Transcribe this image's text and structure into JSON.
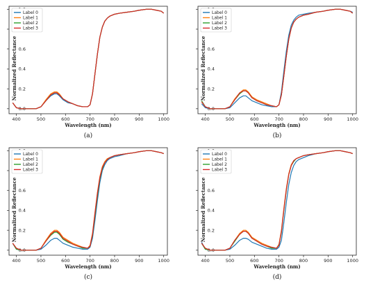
{
  "chart_data": [
    {
      "type": "line",
      "caption": "(a)",
      "xlabel": "Wavelength   (nm)",
      "ylabel": "Normalized Reflectance",
      "xlim": [
        370,
        1015
      ],
      "ylim": [
        -0.05,
        1.03
      ],
      "xticks": [
        400,
        500,
        600,
        700,
        800,
        900,
        1000
      ],
      "yticks": [
        0.0,
        0.2,
        0.4,
        0.6,
        0.8,
        1.0
      ],
      "ytick_labels": [
        "0.0",
        "0.2",
        "0.4",
        "0.6",
        "0.8",
        "1.0"
      ],
      "legend_position": "top-left",
      "x": [
        385,
        400,
        420,
        450,
        480,
        500,
        520,
        540,
        555,
        565,
        575,
        590,
        610,
        630,
        650,
        670,
        690,
        700,
        710,
        720,
        730,
        740,
        750,
        760,
        770,
        780,
        800,
        820,
        850,
        880,
        900,
        930,
        950,
        970,
        990,
        1000
      ],
      "series": [
        {
          "name": "Label 0",
          "color": "#1f77b4",
          "values": [
            0.06,
            0.01,
            0.0,
            0.0,
            0.0,
            0.02,
            0.08,
            0.13,
            0.15,
            0.15,
            0.13,
            0.09,
            0.06,
            0.05,
            0.03,
            0.02,
            0.02,
            0.04,
            0.15,
            0.35,
            0.55,
            0.72,
            0.82,
            0.88,
            0.91,
            0.93,
            0.95,
            0.96,
            0.97,
            0.98,
            0.99,
            1.0,
            1.0,
            0.99,
            0.98,
            0.96
          ]
        },
        {
          "name": "Label 1",
          "color": "#ff7f0e",
          "values": [
            0.06,
            0.01,
            0.0,
            0.0,
            0.0,
            0.02,
            0.09,
            0.15,
            0.17,
            0.17,
            0.15,
            0.1,
            0.07,
            0.05,
            0.03,
            0.02,
            0.02,
            0.04,
            0.15,
            0.35,
            0.55,
            0.72,
            0.82,
            0.88,
            0.91,
            0.93,
            0.95,
            0.96,
            0.97,
            0.98,
            0.99,
            1.0,
            1.0,
            0.99,
            0.98,
            0.96
          ]
        },
        {
          "name": "Label 2",
          "color": "#2ca02c",
          "values": [
            0.06,
            0.01,
            0.0,
            0.0,
            0.0,
            0.02,
            0.08,
            0.14,
            0.16,
            0.16,
            0.14,
            0.1,
            0.07,
            0.05,
            0.03,
            0.02,
            0.02,
            0.04,
            0.15,
            0.35,
            0.55,
            0.72,
            0.82,
            0.88,
            0.91,
            0.93,
            0.95,
            0.96,
            0.97,
            0.98,
            0.99,
            1.0,
            1.0,
            0.99,
            0.98,
            0.96
          ]
        },
        {
          "name": "Label 3",
          "color": "#d62728",
          "values": [
            0.06,
            0.01,
            0.0,
            0.0,
            0.0,
            0.02,
            0.08,
            0.14,
            0.16,
            0.16,
            0.14,
            0.1,
            0.07,
            0.05,
            0.03,
            0.02,
            0.02,
            0.04,
            0.15,
            0.35,
            0.55,
            0.72,
            0.82,
            0.88,
            0.91,
            0.93,
            0.95,
            0.96,
            0.97,
            0.98,
            0.99,
            1.0,
            1.0,
            0.99,
            0.98,
            0.96
          ]
        }
      ]
    },
    {
      "type": "line",
      "caption": "(b)",
      "xlabel": "Wavelength   (nm)",
      "ylabel": "Normalized Reflectance",
      "xlim": [
        370,
        1015
      ],
      "ylim": [
        -0.05,
        1.03
      ],
      "xticks": [
        400,
        500,
        600,
        700,
        800,
        900,
        1000
      ],
      "yticks": [
        0.0,
        0.2,
        0.4,
        0.6,
        0.8,
        1.0
      ],
      "ytick_labels": [
        "0.0",
        "0.2",
        "0.4",
        "0.6",
        "0.8",
        "1.0"
      ],
      "legend_position": "top-left",
      "x": [
        385,
        400,
        420,
        450,
        480,
        500,
        520,
        540,
        555,
        565,
        575,
        590,
        610,
        630,
        650,
        670,
        690,
        700,
        710,
        720,
        730,
        740,
        750,
        760,
        770,
        780,
        800,
        820,
        850,
        880,
        900,
        930,
        950,
        970,
        990,
        1000
      ],
      "series": [
        {
          "name": "Label 0",
          "color": "#1f77b4",
          "values": [
            0.05,
            0.01,
            0.0,
            0.0,
            0.0,
            0.01,
            0.06,
            0.11,
            0.13,
            0.13,
            0.11,
            0.08,
            0.06,
            0.04,
            0.03,
            0.02,
            0.02,
            0.04,
            0.17,
            0.38,
            0.58,
            0.74,
            0.84,
            0.89,
            0.92,
            0.94,
            0.95,
            0.96,
            0.97,
            0.98,
            0.99,
            1.0,
            1.0,
            0.99,
            0.98,
            0.97
          ]
        },
        {
          "name": "Label 1",
          "color": "#ff7f0e",
          "values": [
            0.07,
            0.02,
            0.0,
            0.0,
            0.0,
            0.02,
            0.1,
            0.16,
            0.19,
            0.19,
            0.17,
            0.12,
            0.09,
            0.07,
            0.05,
            0.03,
            0.02,
            0.04,
            0.14,
            0.33,
            0.53,
            0.7,
            0.81,
            0.87,
            0.9,
            0.92,
            0.94,
            0.95,
            0.97,
            0.98,
            0.99,
            1.0,
            1.0,
            0.99,
            0.98,
            0.96
          ]
        },
        {
          "name": "Label 2",
          "color": "#2ca02c",
          "values": [
            0.08,
            0.02,
            0.0,
            0.0,
            0.0,
            0.02,
            0.09,
            0.15,
            0.18,
            0.18,
            0.16,
            0.11,
            0.08,
            0.06,
            0.04,
            0.03,
            0.02,
            0.04,
            0.14,
            0.33,
            0.53,
            0.7,
            0.81,
            0.87,
            0.9,
            0.92,
            0.94,
            0.95,
            0.97,
            0.98,
            0.99,
            1.0,
            1.0,
            0.99,
            0.98,
            0.96
          ]
        },
        {
          "name": "Label 3",
          "color": "#d62728",
          "values": [
            0.07,
            0.02,
            0.0,
            0.0,
            0.0,
            0.02,
            0.09,
            0.16,
            0.18,
            0.18,
            0.16,
            0.11,
            0.08,
            0.06,
            0.04,
            0.03,
            0.02,
            0.04,
            0.14,
            0.33,
            0.53,
            0.7,
            0.81,
            0.87,
            0.9,
            0.92,
            0.94,
            0.95,
            0.97,
            0.98,
            0.99,
            1.0,
            1.0,
            0.99,
            0.98,
            0.96
          ]
        }
      ]
    },
    {
      "type": "line",
      "caption": "(c)",
      "xlabel": "Wavelength   (nm)",
      "ylabel": "Normalized Reflectance",
      "xlim": [
        370,
        1015
      ],
      "ylim": [
        -0.05,
        1.03
      ],
      "xticks": [
        400,
        500,
        600,
        700,
        800,
        900,
        1000
      ],
      "yticks": [
        0.0,
        0.2,
        0.4,
        0.6,
        0.8,
        1.0
      ],
      "ytick_labels": [
        "0.0",
        "0.2",
        "0.4",
        "0.6",
        "0.8",
        "1.0"
      ],
      "legend_position": "top-left",
      "x": [
        385,
        400,
        420,
        450,
        480,
        500,
        520,
        540,
        555,
        565,
        575,
        590,
        610,
        630,
        650,
        670,
        690,
        700,
        710,
        720,
        730,
        740,
        750,
        760,
        770,
        780,
        800,
        820,
        850,
        880,
        900,
        930,
        950,
        970,
        990,
        1000
      ],
      "series": [
        {
          "name": "Label 0",
          "color": "#1f77b4",
          "values": [
            0.07,
            0.01,
            0.0,
            0.0,
            0.0,
            0.01,
            0.05,
            0.1,
            0.12,
            0.12,
            0.1,
            0.07,
            0.05,
            0.03,
            0.02,
            0.01,
            0.01,
            0.03,
            0.12,
            0.3,
            0.5,
            0.68,
            0.8,
            0.86,
            0.9,
            0.92,
            0.94,
            0.95,
            0.97,
            0.98,
            0.99,
            1.0,
            1.0,
            0.99,
            0.98,
            0.97
          ]
        },
        {
          "name": "Label 1",
          "color": "#ff7f0e",
          "values": [
            0.07,
            0.02,
            0.0,
            0.0,
            0.0,
            0.02,
            0.1,
            0.17,
            0.2,
            0.2,
            0.18,
            0.13,
            0.1,
            0.07,
            0.05,
            0.03,
            0.02,
            0.05,
            0.17,
            0.38,
            0.58,
            0.74,
            0.84,
            0.89,
            0.92,
            0.93,
            0.95,
            0.96,
            0.97,
            0.98,
            0.99,
            1.0,
            1.0,
            0.99,
            0.98,
            0.97
          ]
        },
        {
          "name": "Label 2",
          "color": "#2ca02c",
          "values": [
            0.07,
            0.01,
            0.0,
            0.0,
            0.0,
            0.02,
            0.09,
            0.15,
            0.18,
            0.18,
            0.16,
            0.11,
            0.08,
            0.06,
            0.04,
            0.02,
            0.02,
            0.04,
            0.15,
            0.35,
            0.55,
            0.72,
            0.82,
            0.88,
            0.91,
            0.93,
            0.95,
            0.96,
            0.97,
            0.98,
            0.99,
            1.0,
            1.0,
            0.99,
            0.98,
            0.97
          ]
        },
        {
          "name": "Label 3",
          "color": "#d62728",
          "values": [
            0.07,
            0.02,
            0.0,
            0.0,
            0.0,
            0.02,
            0.09,
            0.16,
            0.19,
            0.19,
            0.17,
            0.12,
            0.09,
            0.06,
            0.04,
            0.03,
            0.02,
            0.04,
            0.16,
            0.37,
            0.57,
            0.73,
            0.83,
            0.88,
            0.91,
            0.93,
            0.95,
            0.96,
            0.97,
            0.98,
            0.99,
            1.0,
            1.0,
            0.99,
            0.98,
            0.97
          ]
        }
      ]
    },
    {
      "type": "line",
      "caption": "(d)",
      "xlabel": "Wavelength   (nm)",
      "ylabel": "Normalized Reflectance",
      "xlim": [
        370,
        1015
      ],
      "ylim": [
        -0.05,
        1.03
      ],
      "xticks": [
        400,
        500,
        600,
        700,
        800,
        900,
        1000
      ],
      "yticks": [
        0.0,
        0.2,
        0.4,
        0.6,
        0.8,
        1.0
      ],
      "ytick_labels": [
        "0.0",
        "0.2",
        "0.4",
        "0.6",
        "0.8",
        "1.0"
      ],
      "legend_position": "top-left",
      "x": [
        385,
        400,
        420,
        450,
        480,
        500,
        520,
        540,
        555,
        565,
        575,
        590,
        610,
        630,
        650,
        670,
        690,
        700,
        710,
        720,
        730,
        740,
        750,
        760,
        770,
        780,
        800,
        820,
        850,
        880,
        900,
        930,
        950,
        970,
        990,
        1000
      ],
      "series": [
        {
          "name": "Label 0",
          "color": "#1f77b4",
          "values": [
            0.08,
            0.01,
            0.0,
            0.0,
            0.0,
            0.01,
            0.05,
            0.1,
            0.12,
            0.12,
            0.11,
            0.08,
            0.06,
            0.04,
            0.02,
            0.01,
            0.01,
            0.03,
            0.1,
            0.28,
            0.48,
            0.66,
            0.78,
            0.85,
            0.89,
            0.91,
            0.93,
            0.95,
            0.97,
            0.98,
            0.99,
            1.0,
            1.0,
            0.99,
            0.98,
            0.97
          ]
        },
        {
          "name": "Label 1",
          "color": "#ff7f0e",
          "values": [
            0.07,
            0.02,
            0.0,
            0.0,
            0.0,
            0.02,
            0.1,
            0.17,
            0.2,
            0.2,
            0.18,
            0.13,
            0.1,
            0.07,
            0.05,
            0.03,
            0.02,
            0.06,
            0.2,
            0.42,
            0.62,
            0.77,
            0.86,
            0.9,
            0.92,
            0.93,
            0.95,
            0.96,
            0.97,
            0.98,
            0.99,
            1.0,
            1.0,
            0.99,
            0.98,
            0.97
          ]
        },
        {
          "name": "Label 2",
          "color": "#2ca02c",
          "values": [
            0.07,
            0.01,
            0.0,
            0.0,
            0.0,
            0.02,
            0.09,
            0.16,
            0.19,
            0.19,
            0.17,
            0.12,
            0.09,
            0.06,
            0.04,
            0.02,
            0.02,
            0.05,
            0.18,
            0.4,
            0.6,
            0.76,
            0.85,
            0.89,
            0.92,
            0.93,
            0.95,
            0.96,
            0.97,
            0.98,
            0.99,
            1.0,
            1.0,
            0.99,
            0.98,
            0.97
          ]
        },
        {
          "name": "Label 3",
          "color": "#d62728",
          "values": [
            0.07,
            0.02,
            0.0,
            0.0,
            0.0,
            0.02,
            0.1,
            0.16,
            0.19,
            0.19,
            0.17,
            0.12,
            0.09,
            0.06,
            0.04,
            0.03,
            0.02,
            0.05,
            0.19,
            0.41,
            0.61,
            0.76,
            0.85,
            0.9,
            0.92,
            0.93,
            0.95,
            0.96,
            0.97,
            0.98,
            0.99,
            1.0,
            1.0,
            0.99,
            0.98,
            0.97
          ]
        }
      ]
    }
  ]
}
